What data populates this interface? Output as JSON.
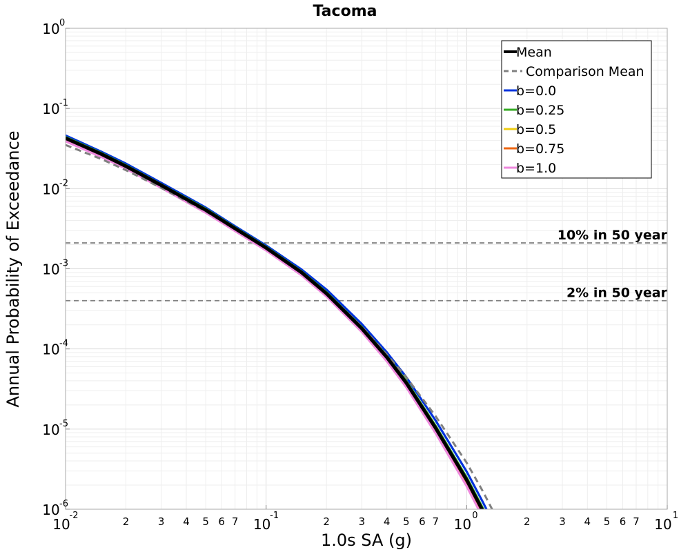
{
  "chart_data": {
    "type": "line",
    "title": "Tacoma",
    "xlabel": "1.0s SA (g)",
    "ylabel": "Annual Probability of Exceedance",
    "xscale": "log",
    "yscale": "log",
    "xlim": [
      0.01,
      10
    ],
    "ylim": [
      1e-06,
      1
    ],
    "grid": true,
    "legend_position": "top-right",
    "x_ticks": {
      "major_base": "10",
      "major_exponents": [
        "-2",
        "-1",
        "0",
        "1"
      ],
      "minor_labels": [
        "2",
        "3",
        "4",
        "5",
        "6",
        "7"
      ]
    },
    "y_ticks": {
      "major_base": "10",
      "major_exponents": [
        "0",
        "-1",
        "-2",
        "-3",
        "-4",
        "-5",
        "-6"
      ]
    },
    "reference_lines": [
      {
        "label": "10% in 50 year",
        "y": 0.0021,
        "color": "#808080"
      },
      {
        "label": "2% in 50 year",
        "y": 0.0004,
        "color": "#808080"
      }
    ],
    "series": [
      {
        "name": "b=0.0",
        "color": "#0033dd",
        "style": "solid",
        "x": [
          0.01,
          0.015,
          0.02,
          0.03,
          0.05,
          0.07,
          0.1,
          0.15,
          0.2,
          0.3,
          0.4,
          0.5,
          0.7,
          1.0,
          1.2,
          1.4
        ],
        "y": [
          0.046,
          0.029,
          0.0205,
          0.0118,
          0.0058,
          0.0034,
          0.00195,
          0.00098,
          0.00055,
          0.000205,
          9.05e-05,
          4.45e-05,
          1.28e-05,
          2.95e-06,
          1.25e-06,
          5.8e-07
        ]
      },
      {
        "name": "b=0.25",
        "color": "#33aa22",
        "style": "solid",
        "x": [
          0.01,
          0.015,
          0.02,
          0.03,
          0.05,
          0.07,
          0.1,
          0.15,
          0.2,
          0.3,
          0.4,
          0.5,
          0.7,
          1.0,
          1.2,
          1.4
        ],
        "y": [
          0.044,
          0.028,
          0.0196,
          0.0113,
          0.0056,
          0.00328,
          0.00188,
          0.00093,
          0.00051,
          0.000188,
          8.2e-05,
          3.98e-05,
          1.1e-05,
          2.5e-06,
          1.05e-06,
          4.8e-07
        ]
      },
      {
        "name": "b=0.5",
        "color": "#eecc11",
        "style": "solid",
        "x": [
          0.01,
          0.015,
          0.02,
          0.03,
          0.05,
          0.07,
          0.1,
          0.15,
          0.2,
          0.3,
          0.4,
          0.5,
          0.7,
          1.0,
          1.2,
          1.4
        ],
        "y": [
          0.043,
          0.0273,
          0.0191,
          0.011,
          0.0054,
          0.00318,
          0.00182,
          0.0009,
          0.00049,
          0.00018,
          7.85e-05,
          3.77e-05,
          1.03e-05,
          2.32e-06,
          9.7e-07,
          4.4e-07
        ]
      },
      {
        "name": "b=0.75",
        "color": "#ee6611",
        "style": "solid",
        "x": [
          0.01,
          0.015,
          0.02,
          0.03,
          0.05,
          0.07,
          0.1,
          0.15,
          0.2,
          0.3,
          0.4,
          0.5,
          0.7,
          1.0,
          1.2,
          1.4
        ],
        "y": [
          0.041,
          0.0262,
          0.0184,
          0.0106,
          0.0052,
          0.00307,
          0.00175,
          0.00086,
          0.00047,
          0.000172,
          7.45e-05,
          3.55e-05,
          9.6e-06,
          2.12e-06,
          8.8e-07,
          4e-07
        ]
      },
      {
        "name": "b=1.0",
        "color": "#ee88dd",
        "style": "solid",
        "x": [
          0.01,
          0.015,
          0.02,
          0.03,
          0.05,
          0.07,
          0.1,
          0.15,
          0.2,
          0.3,
          0.4,
          0.5,
          0.7,
          1.0,
          1.2,
          1.4
        ],
        "y": [
          0.039,
          0.025,
          0.0177,
          0.0102,
          0.005,
          0.00296,
          0.00169,
          0.00083,
          0.00045,
          0.000163,
          7e-05,
          3.32e-05,
          8.9e-06,
          1.94e-06,
          8e-07,
          3.6e-07
        ]
      },
      {
        "name": "Comparison Mean",
        "color": "#808080",
        "style": "dashed",
        "x": [
          0.01,
          0.015,
          0.02,
          0.03,
          0.05,
          0.07,
          0.1,
          0.15,
          0.2,
          0.3,
          0.4,
          0.5,
          0.7,
          1.0,
          1.2,
          1.5
        ],
        "y": [
          0.035,
          0.0235,
          0.017,
          0.0102,
          0.0052,
          0.00315,
          0.00182,
          0.00091,
          0.0005,
          0.00019,
          8.5e-05,
          4.45e-05,
          1.45e-05,
          3.8e-06,
          1.7e-06,
          5.8e-07
        ]
      },
      {
        "name": "Mean",
        "color": "#000000",
        "style": "solid",
        "x": [
          0.01,
          0.015,
          0.02,
          0.03,
          0.05,
          0.07,
          0.1,
          0.15,
          0.2,
          0.3,
          0.4,
          0.5,
          0.7,
          1.0,
          1.2,
          1.4
        ],
        "y": [
          0.0425,
          0.0271,
          0.019,
          0.011,
          0.0054,
          0.00318,
          0.00182,
          0.0009,
          0.00049,
          0.00018,
          7.85e-05,
          3.77e-05,
          1.03e-05,
          2.32e-06,
          9.7e-07,
          4.4e-07
        ]
      }
    ],
    "legend_order": [
      "Mean",
      "Comparison Mean",
      "b=0.0",
      "b=0.25",
      "b=0.5",
      "b=0.75",
      "b=1.0"
    ]
  }
}
